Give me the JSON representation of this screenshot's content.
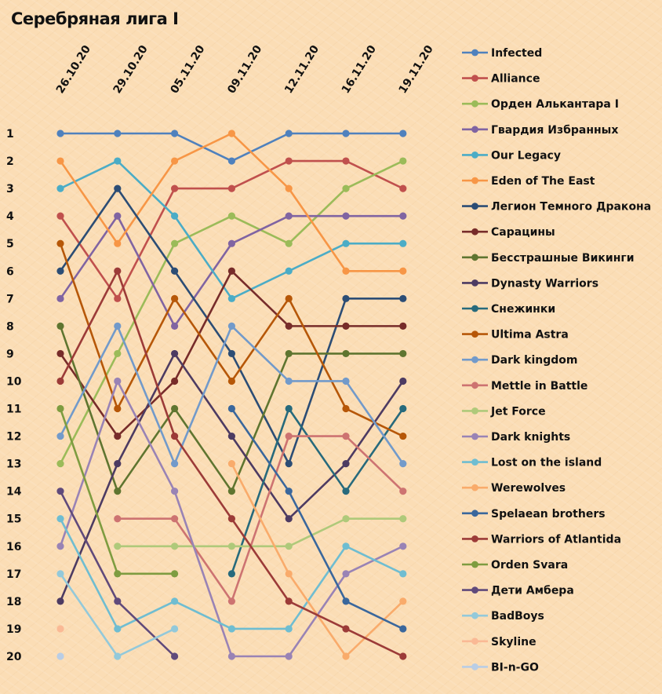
{
  "chart_data": {
    "type": "line",
    "title": "Серебряная лига I",
    "xlabel": "",
    "ylabel": "",
    "categories": [
      "26.10.20",
      "29.10.20",
      "05.11.20",
      "09.11.20",
      "12.11.20",
      "16.11.20",
      "19.11.20"
    ],
    "y_ticks": [
      "1",
      "2",
      "3",
      "4",
      "5",
      "6",
      "7",
      "8",
      "9",
      "10",
      "11",
      "12",
      "13",
      "14",
      "15",
      "16",
      "17",
      "18",
      "19",
      "20"
    ],
    "ylim": [
      1,
      20
    ],
    "y_inverted": true,
    "grid": false,
    "legend_position": "right",
    "series": [
      {
        "name": "Infected",
        "color": "#4f81bd",
        "values": [
          1,
          1,
          1,
          2,
          1,
          1,
          1
        ]
      },
      {
        "name": "Alliance",
        "color": "#c0504d",
        "values": [
          4,
          7,
          3,
          3,
          2,
          2,
          3
        ]
      },
      {
        "name": "Орден Алькантара I",
        "color": "#9bbb59",
        "values": [
          13,
          9,
          5,
          4,
          5,
          3,
          2
        ]
      },
      {
        "name": "Гвардия Избранных",
        "color": "#8064a2",
        "values": [
          7,
          4,
          8,
          5,
          4,
          4,
          4
        ]
      },
      {
        "name": "Our Legacy",
        "color": "#4bacc6",
        "values": [
          3,
          2,
          4,
          7,
          6,
          5,
          5
        ]
      },
      {
        "name": "Eden of The East",
        "color": "#f79646",
        "values": [
          2,
          5,
          2,
          1,
          3,
          6,
          6
        ]
      },
      {
        "name": "Легион Темного Дракона",
        "color": "#2c4d75",
        "values": [
          6,
          3,
          6,
          9,
          13,
          7,
          7
        ]
      },
      {
        "name": "Сарацины",
        "color": "#772c2a",
        "values": [
          9,
          12,
          10,
          6,
          8,
          8,
          8
        ]
      },
      {
        "name": "Бесстрашные Викинги",
        "color": "#5f7530",
        "values": [
          8,
          14,
          11,
          14,
          9,
          9,
          9
        ]
      },
      {
        "name": "Dynasty Warriors",
        "color": "#4d3b62",
        "values": [
          18,
          13,
          9,
          12,
          15,
          13,
          10
        ]
      },
      {
        "name": "Снежинки",
        "color": "#276a7c",
        "values": [
          null,
          null,
          null,
          17,
          11,
          14,
          11
        ]
      },
      {
        "name": "Ultima Astra",
        "color": "#b65708",
        "values": [
          5,
          11,
          7,
          10,
          7,
          11,
          12
        ]
      },
      {
        "name": "Dark kingdom",
        "color": "#729aca",
        "values": [
          12,
          8,
          13,
          8,
          10,
          10,
          13
        ]
      },
      {
        "name": "Mettle in Battle",
        "color": "#cd7371",
        "values": [
          null,
          15,
          15,
          18,
          12,
          12,
          14
        ]
      },
      {
        "name": "Jet Force",
        "color": "#afc97a",
        "values": [
          null,
          16,
          16,
          16,
          16,
          15,
          15
        ]
      },
      {
        "name": "Dark knights",
        "color": "#9983b5",
        "values": [
          16,
          10,
          14,
          20,
          20,
          17,
          16
        ]
      },
      {
        "name": "Lost on the island",
        "color": "#6fbdd1",
        "values": [
          15,
          19,
          18,
          19,
          19,
          16,
          17
        ]
      },
      {
        "name": "Werewolves",
        "color": "#f9ab6b",
        "values": [
          null,
          null,
          null,
          13,
          17,
          20,
          18
        ]
      },
      {
        "name": "Spelaean brothers",
        "color": "#3a679c",
        "values": [
          null,
          null,
          null,
          11,
          14,
          18,
          19
        ]
      },
      {
        "name": "Warriors of Atlantida",
        "color": "#9c3b38",
        "values": [
          10,
          6,
          12,
          15,
          18,
          19,
          20
        ]
      },
      {
        "name": "Orden Svara",
        "color": "#7e9c40",
        "values": [
          11,
          17,
          17,
          null,
          null,
          null,
          null
        ]
      },
      {
        "name": "Дети Амбера",
        "color": "#604a7b",
        "values": [
          14,
          18,
          20,
          null,
          null,
          null,
          null
        ]
      },
      {
        "name": "BadBoys",
        "color": "#93c9da",
        "values": [
          17,
          20,
          19,
          null,
          null,
          null,
          null
        ]
      },
      {
        "name": "Skyline",
        "color": "#fab995",
        "values": [
          19,
          null,
          null,
          null,
          null,
          null,
          null
        ]
      },
      {
        "name": "BI-n-GO",
        "color": "#b9cde5",
        "values": [
          20,
          null,
          null,
          null,
          null,
          null,
          null
        ]
      }
    ]
  }
}
